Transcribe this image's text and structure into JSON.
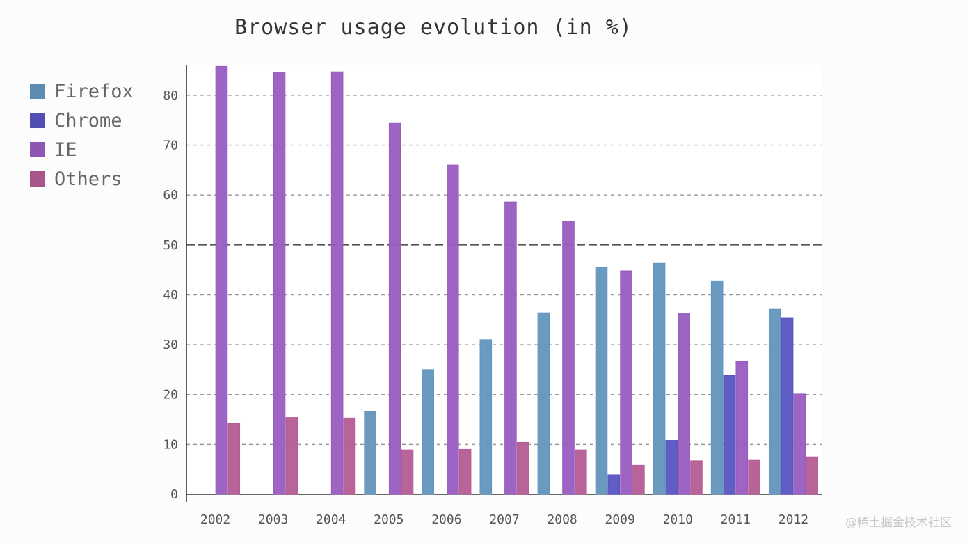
{
  "chart_data": {
    "type": "bar",
    "title": "Browser usage evolution (in %)",
    "xlabel": "",
    "ylabel": "",
    "categories": [
      "2002",
      "2003",
      "2004",
      "2005",
      "2006",
      "2007",
      "2008",
      "2009",
      "2010",
      "2011",
      "2012"
    ],
    "ylim": [
      0,
      86
    ],
    "yticks": [
      0,
      10,
      20,
      30,
      40,
      50,
      60,
      70,
      80
    ],
    "grid": "horizontal-dashed",
    "legend_position": "top-left",
    "series": [
      {
        "name": "Firefox",
        "color": "#6699c4",
        "values": [
          null,
          null,
          null,
          16.6,
          25,
          31,
          36.4,
          45.5,
          46.3,
          42.8,
          37.1
        ]
      },
      {
        "name": "Chrome",
        "color": "#5b58c8",
        "values": [
          null,
          null,
          null,
          null,
          null,
          null,
          null,
          3.9,
          10.8,
          23.8,
          35.3
        ]
      },
      {
        "name": "IE",
        "color": "#9e5fc6",
        "values": [
          85.8,
          84.6,
          84.7,
          74.5,
          66,
          58.6,
          54.7,
          44.8,
          36.2,
          26.6,
          20.1
        ]
      },
      {
        "name": "Others",
        "color": "#bb5f98",
        "values": [
          14.2,
          15.4,
          15.3,
          8.9,
          9,
          10.4,
          8.9,
          5.8,
          6.7,
          6.8,
          7.5
        ]
      }
    ]
  },
  "watermark": "@稀土掘金技术社区"
}
